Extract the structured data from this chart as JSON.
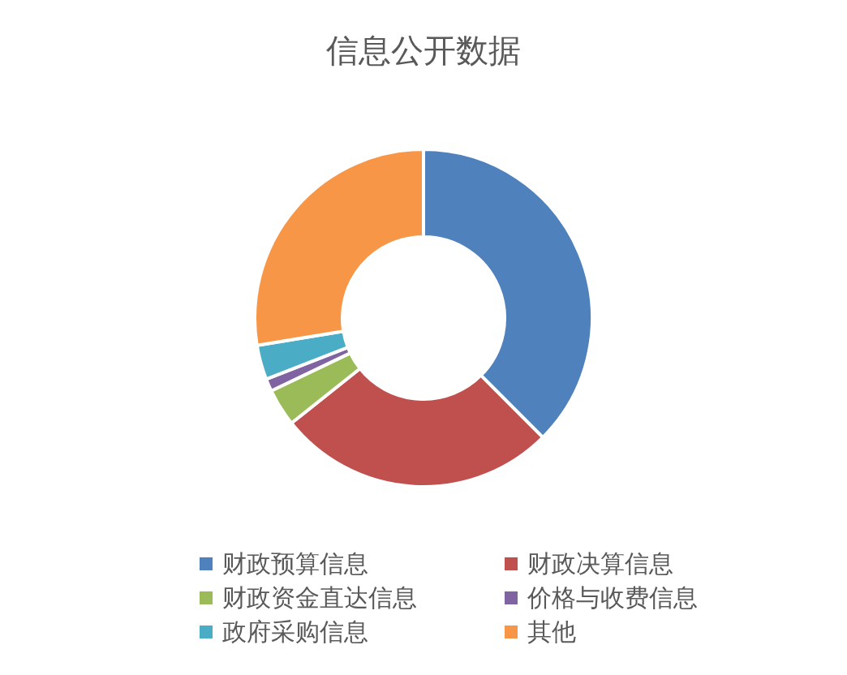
{
  "chart_data": {
    "type": "donut",
    "title": "信息公开数据",
    "categories": [
      "财政预算信息",
      "财政决算信息",
      "财政资金直达信息",
      "价格与收费信息",
      "政府采购信息",
      "其他"
    ],
    "values": [
      37.5,
      26.8,
      3.6,
      1.2,
      3.3,
      27.6
    ],
    "colors": [
      "#4f81bd",
      "#c0504d",
      "#9bbb59",
      "#8064a2",
      "#4bacc6",
      "#f79646"
    ],
    "legend": "bottom"
  }
}
